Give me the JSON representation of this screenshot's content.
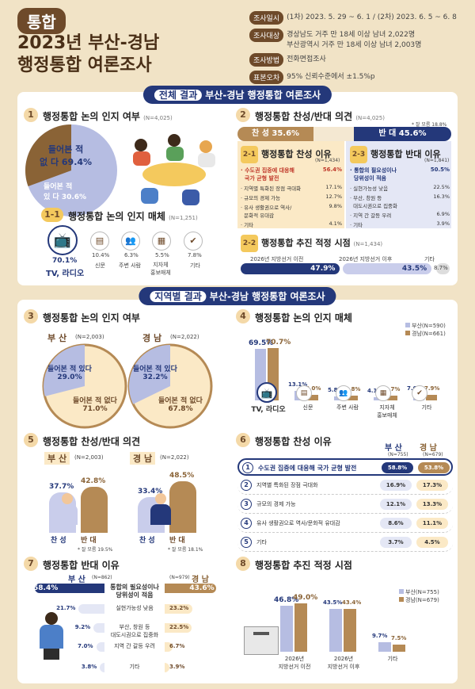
{
  "header": {
    "badge": "통합",
    "title1": "2023년 부산-경남",
    "title2": "행정통합 여론조사",
    "info": [
      {
        "label": "조사일시",
        "lines": [
          "(1차) 2023. 5. 29 ~ 6. 1 / (2차) 2023. 6. 5 ~ 6. 8"
        ]
      },
      {
        "label": "조사대상",
        "lines": [
          "경상남도 거주 만 18세 이상 남녀 2,022명",
          "부산광역시 거주 만 18세 이상 남녀 2,003명"
        ]
      },
      {
        "label": "조사방법",
        "lines": [
          "전화면접조사"
        ]
      },
      {
        "label": "표본오차",
        "lines": [
          "95% 신뢰수준에서 ±1.5%p"
        ]
      }
    ]
  },
  "overall": {
    "banner_tag": "전체 결과",
    "banner": "부산-경남 행정통합 여론조사",
    "q1": {
      "num": "1",
      "title": "행정통합 논의 인지 여부",
      "n": "(N=4,025)",
      "no_label": "들어본 적\n없 다 69.4%",
      "yes_label": "들어본 적\n있 다 30.6%",
      "no": 69.4,
      "yes": 30.6
    },
    "q11": {
      "num": "1-1",
      "title": "행정통합 논의 인지 매체",
      "n": "(N=1,251)",
      "items": [
        {
          "label": "TV, 라디오",
          "value": "70.1%"
        },
        {
          "label": "신문",
          "value": "10.4%"
        },
        {
          "label": "주변 사람",
          "value": "6.3%"
        },
        {
          "label": "지자체\n홍보매체",
          "value": "5.5%"
        },
        {
          "label": "기타",
          "value": "7.8%"
        }
      ]
    },
    "q2": {
      "num": "2",
      "title": "행정통합 찬성/반대 의견",
      "n": "(N=4,025)",
      "note": "* 잘 모름 18.8%",
      "favor": "찬 성  35.6%",
      "oppose": "반 대  45.6%",
      "favor_v": 35.6,
      "oppose_v": 45.6
    },
    "q21": {
      "num": "2-1",
      "title": "행정통합 찬성 이유",
      "n": "(N=1,434)",
      "items": [
        {
          "label": "· 수도권 집중에 대응해\n  국가 균형 발전",
          "value": "56.4%"
        },
        {
          "label": "· 지역별 특화된 장점 극대화",
          "value": "17.1%"
        },
        {
          "label": "· 규모의 경제 가능",
          "value": "12.7%"
        },
        {
          "label": "· 유사 생활권으로 역사/\n  문화적 유대감",
          "value": "9.8%"
        },
        {
          "label": "· 기타",
          "value": "4.1%"
        }
      ]
    },
    "q23": {
      "num": "2-3",
      "title": "행정통합 반대 이유",
      "n": "(N=1,841)",
      "items": [
        {
          "label": "· 통합의 필요성이나\n  당위성이 적음",
          "value": "50.5%"
        },
        {
          "label": "· 실현가능성 낮음",
          "value": "22.5%"
        },
        {
          "label": "· 부산, 창원 등\n  대도시권으로 집중화",
          "value": "16.3%"
        },
        {
          "label": "· 지역 간 갈등 우려",
          "value": "6.9%"
        },
        {
          "label": "· 기타",
          "value": "3.9%"
        }
      ]
    },
    "q22": {
      "num": "2-2",
      "title": "행정통합 추진 적정 시점",
      "n": "(N=1,434)",
      "items": [
        {
          "label": "2026년 지방선거 이전",
          "value": "47.9%",
          "v": 47.9
        },
        {
          "label": "2026년 지방선거 이후",
          "value": "43.5%",
          "v": 43.5
        },
        {
          "label": "기타",
          "value": "8.7%",
          "v": 8.7
        }
      ]
    }
  },
  "regional": {
    "banner_tag": "지역별 결과",
    "banner": "부산-경남 행정통합 여론조사",
    "q3": {
      "num": "3",
      "title": "행정통합 논의 인지 여부",
      "busan": {
        "name": "부 산",
        "n": "(N=2,003)",
        "yes_label": "들어본 적 있다\n29.0%",
        "no_label": "들어본 적 없다\n71.0%",
        "yes": 29.0
      },
      "gyeongnam": {
        "name": "경 남",
        "n": "(N=2,022)",
        "yes_label": "들어본 적 있다\n32.2%",
        "no_label": "들어본 적 없다\n67.8%",
        "yes": 32.2
      }
    },
    "q4": {
      "num": "4",
      "title": "행정통합 논의 인지 매체",
      "legend_busan": "부산(N=590)",
      "legend_gn": "경남(N=661)",
      "cats": [
        {
          "label": "TV, 라디오",
          "b": "69.5%",
          "g": "70.7%",
          "bv": 69.5,
          "gv": 70.7
        },
        {
          "label": "신문",
          "b": "13.1%",
          "g": "8.0%",
          "bv": 13.1,
          "gv": 8.0
        },
        {
          "label": "주변 사람",
          "b": "5.8%",
          "g": "6.8%",
          "bv": 5.8,
          "gv": 6.8
        },
        {
          "label": "지자체\n홍보매체",
          "b": "4.1%",
          "g": "6.7%",
          "bv": 4.1,
          "gv": 6.7
        },
        {
          "label": "기타",
          "b": "7.6%",
          "g": "7.9%",
          "bv": 7.6,
          "gv": 7.9
        }
      ]
    },
    "q5": {
      "num": "5",
      "title": "행정통합 찬성/반대 의견",
      "busan": {
        "name": "부 산",
        "n": "(N=2,003)",
        "favor": "37.7%",
        "oppose": "42.8%",
        "fv": 37.7,
        "ov": 42.8,
        "note": "* 잘 모름 19.5%"
      },
      "gyeongnam": {
        "name": "경 남",
        "n": "(N=2,022)",
        "favor": "33.4%",
        "oppose": "48.5%",
        "fv": 33.4,
        "ov": 48.5,
        "note": "* 잘 모름 18.1%"
      },
      "favor_label": "찬 성",
      "oppose_label": "반 대"
    },
    "q6": {
      "num": "6",
      "title": "행정통합 찬성 이유",
      "busan": "부 산",
      "busan_n": "(N=755)",
      "gn": "경 남",
      "gn_n": "(N=679)",
      "rows": [
        {
          "num": "1",
          "label": "수도권 집중에 대응해 국가 균형 발전",
          "b": "58.8%",
          "g": "53.8%"
        },
        {
          "num": "2",
          "label": "지역별 특화된 장점 극대화",
          "b": "16.9%",
          "g": "17.3%"
        },
        {
          "num": "3",
          "label": "규모의 경제 가능",
          "b": "12.1%",
          "g": "13.3%"
        },
        {
          "num": "4",
          "label": "유사 생활권으로 역사/문화적 유대감",
          "b": "8.6%",
          "g": "11.1%"
        },
        {
          "num": "5",
          "label": "기타",
          "b": "3.7%",
          "g": "4.5%"
        }
      ]
    },
    "q7": {
      "num": "7",
      "title": "행정통합 반대 이유",
      "busan": "부 산",
      "busan_n": "(N=862)",
      "gn": "경 남",
      "gn_n": "(N=979)",
      "rows": [
        {
          "label": "통합의 필요성이나\n당위성이 적음",
          "b": "58.4%",
          "g": "43.6%"
        },
        {
          "label": "실현가능성 낮음",
          "b": "21.7%",
          "g": "23.2%"
        },
        {
          "label": "부산, 창원 등\n대도시권으로 집중화",
          "b": "9.2%",
          "g": "22.5%"
        },
        {
          "label": "지역 간 갈등 우려",
          "b": "7.0%",
          "g": "6.7%"
        },
        {
          "label": "기타",
          "b": "3.8%",
          "g": "3.9%"
        }
      ]
    },
    "q8": {
      "num": "8",
      "title": "행정통합 추진 적정 시점",
      "legend_busan": "부산(N=755)",
      "legend_gn": "경남(N=679)",
      "cats": [
        {
          "label": "2026년\n지방선거 이전",
          "b": "46.8%",
          "g": "49.0%",
          "bv": 46.8,
          "gv": 49.0
        },
        {
          "label": "2026년\n지방선거 이후",
          "b": "43.5%",
          "g": "43.4%",
          "bv": 43.5,
          "gv": 43.4
        },
        {
          "label": "기타",
          "b": "9.7%",
          "g": "7.5%",
          "bv": 9.7,
          "gv": 7.5
        }
      ]
    }
  },
  "colors": {
    "navy": "#24387a",
    "brown": "#b58a55",
    "lavender": "#b6bde2",
    "cream": "#fbe9c6",
    "dark": "#6e4a2a"
  }
}
